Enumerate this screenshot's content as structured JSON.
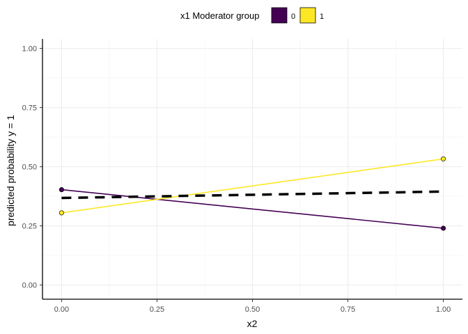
{
  "chart_data": {
    "type": "line",
    "title": "",
    "xlabel": "x2",
    "ylabel": "predicted probability y = 1",
    "xlim": [
      -0.05,
      1.05
    ],
    "ylim": [
      -0.06,
      1.04
    ],
    "x_ticks": [
      0.0,
      0.25,
      0.5,
      0.75,
      1.0
    ],
    "x_tick_labels": [
      "0.00",
      "0.25",
      "0.50",
      "0.75",
      "1.00"
    ],
    "y_ticks": [
      0.0,
      0.25,
      0.5,
      0.75,
      1.0
    ],
    "y_tick_labels": [
      "0.00",
      "0.25",
      "0.50",
      "0.75",
      "1.00"
    ],
    "grid": true,
    "legend": {
      "title": "x1 Moderator group",
      "position": "top",
      "entries": [
        {
          "label": "0",
          "color": "#440154"
        },
        {
          "label": "1",
          "color": "#FDE725"
        }
      ]
    },
    "series": [
      {
        "name": "0",
        "color": "#440154",
        "x": [
          0.0,
          1.0
        ],
        "y": [
          0.403,
          0.24
        ]
      },
      {
        "name": "1",
        "color": "#FDE725",
        "x": [
          0.0,
          1.0
        ],
        "y": [
          0.305,
          0.533
        ]
      },
      {
        "color": "#000000",
        "style": "dashed",
        "x": [
          0.0,
          1.0
        ],
        "y": [
          0.368,
          0.395
        ]
      }
    ]
  }
}
